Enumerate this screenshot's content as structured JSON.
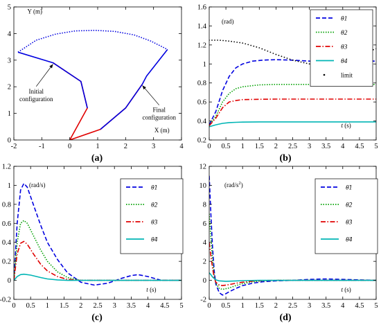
{
  "chart_data": [
    {
      "id": "a",
      "type": "line",
      "caption": "(a)",
      "xlabel": "X (m)",
      "ylabel": "Y (m)",
      "xlim": [
        -2,
        4
      ],
      "ylim": [
        0,
        5
      ],
      "xticks": [
        "-2",
        "-1",
        "0",
        "1",
        "2",
        "3",
        "4"
      ],
      "yticks": [
        "0",
        "1",
        "2",
        "3",
        "4",
        "5"
      ],
      "grid": false,
      "annotations": [
        "Initial configuration",
        "Final configuration"
      ],
      "annotation_lines": [
        [
          "Initial",
          "configuration"
        ],
        [
          "Final",
          "configuration"
        ]
      ],
      "annotation_targets": [
        [
          -0.6,
          2.9
        ],
        [
          2.6,
          2.1
        ]
      ],
      "series": [
        {
          "label": "initial-red",
          "color": "#e00000",
          "style": "solid",
          "x": [
            0,
            0.63,
            0.4,
            -0.6
          ],
          "y": [
            0,
            1.2,
            2.2,
            2.9
          ]
        },
        {
          "label": "initial-blue",
          "color": "#0000e0",
          "style": "solid",
          "x": [
            0.63,
            0.4,
            -0.6,
            -1.85
          ],
          "y": [
            1.2,
            2.2,
            2.9,
            3.3
          ]
        },
        {
          "label": "final-red",
          "color": "#e00000",
          "style": "solid",
          "x": [
            0,
            1.1,
            2.0,
            2.6
          ],
          "y": [
            0,
            0.4,
            1.2,
            2.1
          ]
        },
        {
          "label": "final-blue",
          "color": "#0000e0",
          "style": "solid",
          "x": [
            1.1,
            2.0,
            2.6,
            2.75,
            3.5
          ],
          "y": [
            0.4,
            1.2,
            2.1,
            2.4,
            3.4
          ]
        },
        {
          "label": "path",
          "color": "#0000e0",
          "style": "dotted",
          "x": [
            -1.85,
            -1.2,
            -0.5,
            0.2,
            0.9,
            1.6,
            2.3,
            2.9,
            3.5
          ],
          "y": [
            3.3,
            3.75,
            3.98,
            4.1,
            4.12,
            4.08,
            3.95,
            3.72,
            3.4
          ]
        }
      ]
    },
    {
      "id": "b",
      "type": "line",
      "caption": "(b)",
      "unit": "(rad)",
      "xlabel": "t (s)",
      "xlim": [
        0,
        5
      ],
      "ylim": [
        0.2,
        1.6
      ],
      "xticks": [
        "0",
        "0.5",
        "1",
        "1.5",
        "2",
        "2.5",
        "3",
        "3.5",
        "4",
        "4.5",
        "5"
      ],
      "yticks": [
        "0.2",
        "0.4",
        "0.6",
        "0.8",
        "1",
        "1.2",
        "1.4",
        "1.6"
      ],
      "grid": false,
      "legend_position": "top-right",
      "series": [
        {
          "name": "θ1",
          "color": "#0000e0",
          "style": "dashed",
          "x": [
            0,
            0.2,
            0.4,
            0.6,
            0.8,
            1.0,
            1.3,
            1.6,
            2.0,
            2.5,
            3.0,
            4.0,
            5.0
          ],
          "y": [
            0.36,
            0.5,
            0.72,
            0.87,
            0.96,
            1.0,
            1.03,
            1.04,
            1.045,
            1.04,
            1.03,
            1.03,
            1.03
          ]
        },
        {
          "name": "θ2",
          "color": "#00a000",
          "style": "dotted",
          "x": [
            0,
            0.2,
            0.4,
            0.6,
            0.8,
            1.0,
            1.5,
            2.0,
            3.0,
            5.0
          ],
          "y": [
            0.35,
            0.45,
            0.6,
            0.69,
            0.74,
            0.76,
            0.78,
            0.785,
            0.785,
            0.785
          ]
        },
        {
          "name": "θ3",
          "color": "#e00000",
          "style": "dashdot",
          "x": [
            0,
            0.2,
            0.4,
            0.6,
            0.8,
            1.0,
            1.5,
            2.0,
            3.0,
            5.0
          ],
          "y": [
            0.35,
            0.43,
            0.54,
            0.6,
            0.615,
            0.625,
            0.628,
            0.63,
            0.63,
            0.63
          ]
        },
        {
          "name": "θ4",
          "color": "#00b5b5",
          "style": "solid",
          "x": [
            0,
            0.2,
            0.4,
            0.6,
            0.8,
            1.0,
            1.5,
            2.0,
            3.0,
            5.0
          ],
          "y": [
            0.34,
            0.36,
            0.375,
            0.383,
            0.386,
            0.388,
            0.39,
            0.39,
            0.39,
            0.39
          ]
        },
        {
          "name": "limit",
          "color": "#000000",
          "style": "dots",
          "x": [
            0,
            0.3,
            0.6,
            1.0,
            1.5,
            2.0,
            2.5,
            3.0,
            3.5,
            4.0,
            4.5,
            5.0
          ],
          "y": [
            1.25,
            1.25,
            1.24,
            1.22,
            1.17,
            1.1,
            1.04,
            1.0,
            1.005,
            1.04,
            1.1,
            1.16
          ]
        }
      ]
    },
    {
      "id": "c",
      "type": "line",
      "caption": "(c)",
      "unit": "(rad/s)",
      "xlabel": "t (s)",
      "xlim": [
        0,
        5
      ],
      "ylim": [
        -0.2,
        1.2
      ],
      "xticks": [
        "0",
        "0.5",
        "1",
        "1.5",
        "2",
        "2.5",
        "3",
        "3.5",
        "4",
        "4.5",
        "5"
      ],
      "yticks": [
        "-0.2",
        "0",
        "0.2",
        "0.4",
        "0.6",
        "0.8",
        "1",
        "1.2"
      ],
      "grid": false,
      "legend_position": "right",
      "series": [
        {
          "name": "θ̇1",
          "color": "#0000e0",
          "style": "dashed",
          "x": [
            0,
            0.1,
            0.2,
            0.3,
            0.4,
            0.6,
            0.8,
            1.0,
            1.3,
            1.6,
            2.0,
            2.4,
            2.8,
            3.2,
            3.5,
            3.7,
            4.0,
            4.4,
            5.0
          ],
          "y": [
            0,
            0.6,
            0.95,
            1.02,
            0.98,
            0.78,
            0.58,
            0.4,
            0.22,
            0.08,
            -0.02,
            -0.05,
            -0.03,
            0.02,
            0.05,
            0.06,
            0.04,
            0.0,
            0.0
          ]
        },
        {
          "name": "θ̇2",
          "color": "#00a000",
          "style": "dotted",
          "x": [
            0,
            0.1,
            0.2,
            0.3,
            0.4,
            0.6,
            0.8,
            1.0,
            1.3,
            1.6,
            2.0,
            2.5,
            5.0
          ],
          "y": [
            0,
            0.4,
            0.6,
            0.63,
            0.6,
            0.46,
            0.32,
            0.2,
            0.09,
            0.03,
            0.0,
            0.0,
            0.0
          ]
        },
        {
          "name": "θ̇3",
          "color": "#e00000",
          "style": "dashdot",
          "x": [
            0,
            0.1,
            0.2,
            0.3,
            0.4,
            0.6,
            0.8,
            1.0,
            1.3,
            1.6,
            2.0,
            5.0
          ],
          "y": [
            0,
            0.28,
            0.39,
            0.41,
            0.38,
            0.27,
            0.17,
            0.1,
            0.04,
            0.01,
            0.0,
            0.0
          ]
        },
        {
          "name": "θ̇4",
          "color": "#00b5b5",
          "style": "solid",
          "x": [
            0,
            0.1,
            0.2,
            0.3,
            0.5,
            0.8,
            1.0,
            1.3,
            1.6,
            2.0,
            5.0
          ],
          "y": [
            0,
            0.04,
            0.06,
            0.065,
            0.055,
            0.03,
            0.015,
            0.005,
            0.0,
            0.0,
            0.0
          ]
        }
      ]
    },
    {
      "id": "d",
      "type": "line",
      "caption": "(d)",
      "unit": "(rad/s",
      "unit_sup": "2",
      "unit_end": ")",
      "xlabel": "t (s)",
      "xlim": [
        0,
        5
      ],
      "ylim": [
        -2,
        12
      ],
      "xticks": [
        "0",
        "0.5",
        "1",
        "1.5",
        "2",
        "2.5",
        "3",
        "3.5",
        "4",
        "4.5",
        "5"
      ],
      "yticks": [
        "-2",
        "0",
        "2",
        "4",
        "6",
        "8",
        "10",
        "12"
      ],
      "grid": false,
      "legend_position": "right",
      "series": [
        {
          "name": "θ̈1",
          "color": "#0000e0",
          "style": "dashed",
          "x": [
            0,
            0.05,
            0.1,
            0.15,
            0.2,
            0.3,
            0.4,
            0.5,
            0.6,
            0.8,
            1.0,
            1.3,
            1.6,
            2.0,
            2.5,
            3.0,
            3.5,
            4.0,
            5.0
          ],
          "y": [
            11,
            7,
            3.5,
            1.0,
            -0.4,
            -1.3,
            -1.55,
            -1.4,
            -1.2,
            -0.85,
            -0.55,
            -0.3,
            -0.15,
            -0.05,
            0.0,
            0.1,
            0.15,
            0.1,
            0.0
          ]
        },
        {
          "name": "θ̈2",
          "color": "#00a000",
          "style": "dotted",
          "x": [
            0,
            0.05,
            0.1,
            0.15,
            0.2,
            0.3,
            0.4,
            0.6,
            0.8,
            1.0,
            1.3,
            1.6,
            2.0,
            5.0
          ],
          "y": [
            7,
            4.5,
            2.2,
            0.5,
            -0.3,
            -0.85,
            -0.95,
            -0.8,
            -0.55,
            -0.35,
            -0.15,
            -0.05,
            0.0,
            0.0
          ]
        },
        {
          "name": "θ̈3",
          "color": "#e00000",
          "style": "dashdot",
          "x": [
            0,
            0.05,
            0.1,
            0.15,
            0.2,
            0.3,
            0.4,
            0.6,
            0.8,
            1.0,
            1.3,
            1.6,
            2.0,
            5.0
          ],
          "y": [
            4,
            2.6,
            1.3,
            0.3,
            -0.2,
            -0.5,
            -0.55,
            -0.45,
            -0.3,
            -0.2,
            -0.08,
            -0.02,
            0.0,
            0.0
          ]
        },
        {
          "name": "θ̈4",
          "color": "#00b5b5",
          "style": "solid",
          "x": [
            0,
            0.05,
            0.1,
            0.2,
            0.3,
            0.5,
            0.8,
            1.0,
            1.5,
            2.0,
            5.0
          ],
          "y": [
            0.8,
            0.6,
            0.35,
            0.05,
            -0.05,
            -0.1,
            -0.06,
            -0.03,
            0.0,
            0.0,
            0.0
          ]
        }
      ]
    }
  ]
}
